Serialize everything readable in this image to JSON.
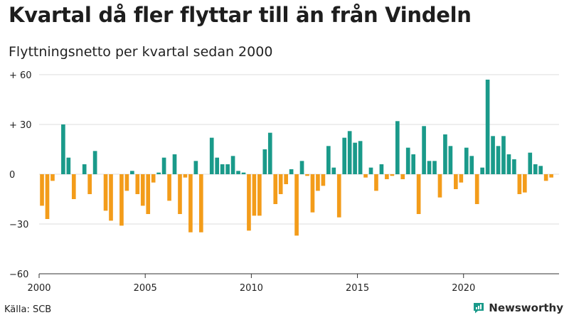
{
  "chart_data": {
    "type": "bar",
    "title": "Kvartal då fler flyttar till än från Vindeln",
    "subtitle": "Flyttningsnetto per kvartal sedan 2000",
    "x_ticks": [
      "2000",
      "2005",
      "2010",
      "2015",
      "2020"
    ],
    "y_ticks": [
      "+ 60",
      "+ 30",
      "0",
      "−30",
      "−60"
    ],
    "ylim": [
      -60,
      60
    ],
    "grid": true,
    "colors": {
      "positive": "#1a9a8a",
      "negative": "#f39c1a"
    },
    "start": "2000 Q1",
    "values": [
      -19,
      -27,
      -4,
      0,
      30,
      10,
      -15,
      0,
      6,
      -12,
      14,
      0,
      -22,
      -28,
      0,
      -31,
      -10,
      2,
      -12,
      -19,
      -24,
      -5,
      1,
      10,
      -16,
      12,
      -24,
      -2,
      -35,
      8,
      -35,
      0,
      22,
      10,
      6,
      6,
      11,
      2,
      1,
      -34,
      -25,
      -25,
      15,
      25,
      -18,
      -12,
      -6,
      3,
      -37,
      8,
      -1,
      -23,
      -10,
      -7,
      17,
      4,
      -26,
      22,
      26,
      19,
      20,
      -2,
      4,
      -10,
      6,
      -3,
      -1,
      32,
      -3,
      16,
      12,
      -24,
      29,
      8,
      8,
      -14,
      24,
      17,
      -9,
      -5,
      16,
      11,
      -18,
      4,
      57,
      23,
      17,
      23,
      12,
      9,
      -12,
      -11,
      13,
      6,
      5,
      -4,
      -2
    ]
  },
  "source": "Källa: SCB",
  "brand": {
    "name": "Newsworthy",
    "icon": "newsworthy-logo-icon"
  }
}
